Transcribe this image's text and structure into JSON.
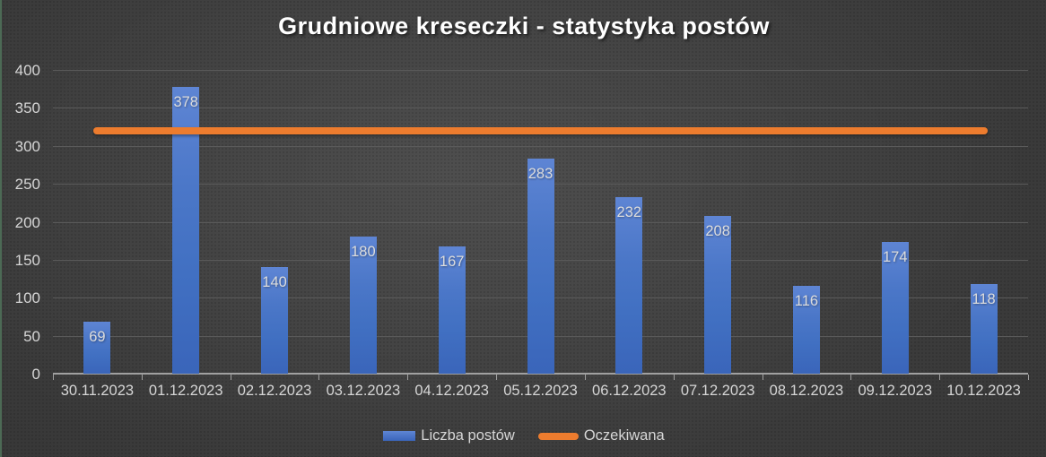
{
  "chart_data": {
    "type": "bar",
    "title": "Grudniowe kreseczki - statystyka postów",
    "categories": [
      "30.11.2023",
      "01.12.2023",
      "02.12.2023",
      "03.12.2023",
      "04.12.2023",
      "05.12.2023",
      "06.12.2023",
      "07.12.2023",
      "08.12.2023",
      "09.12.2023",
      "10.12.2023"
    ],
    "series": [
      {
        "name": "Liczba postów",
        "type": "bar",
        "values": [
          69,
          378,
          140,
          180,
          167,
          283,
          232,
          208,
          116,
          174,
          118
        ]
      },
      {
        "name": "Oczekiwana",
        "type": "line",
        "value": 320
      }
    ],
    "xlabel": "",
    "ylabel": "",
    "ylim": [
      0,
      400
    ],
    "yticks": [
      0,
      50,
      100,
      150,
      200,
      250,
      300,
      350,
      400
    ],
    "grid": true,
    "legend_position": "bottom",
    "value_labels": "inside-top"
  },
  "colors": {
    "bar_fill": "#4472c4",
    "expected_line": "#ed7c2e",
    "background": "#3a3a3a",
    "gridline": "#5a5a5a",
    "axis": "#a0a0a0",
    "text": "#d6d6d6",
    "title_text": "#ffffff",
    "slide_edge_green": "#4c6a55"
  }
}
